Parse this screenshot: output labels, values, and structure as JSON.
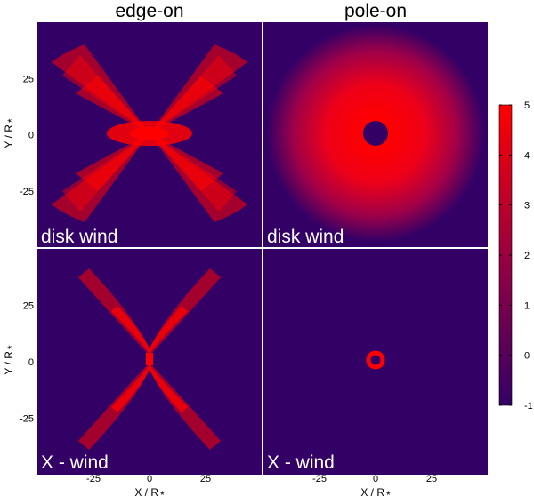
{
  "chart_data": {
    "type": "heatmap",
    "column_titles": [
      "edge-on",
      "pole-on"
    ],
    "panels": [
      {
        "row": 0,
        "col": 0,
        "view": "edge-on",
        "label": "disk wind"
      },
      {
        "row": 0,
        "col": 1,
        "view": "pole-on",
        "label": "disk wind"
      },
      {
        "row": 1,
        "col": 0,
        "view": "edge-on",
        "label": "X - wind"
      },
      {
        "row": 1,
        "col": 1,
        "view": "pole-on",
        "label": "X - wind"
      }
    ],
    "xlabel": "X / R",
    "ylabel": "Y / R",
    "axis_subscript": "*",
    "xlim": [
      -50,
      50
    ],
    "ylim": [
      -50,
      50
    ],
    "x_ticks": [
      -25,
      0,
      25
    ],
    "y_ticks": [
      25,
      0,
      -25
    ],
    "colorbar": {
      "min": -1,
      "max": 5,
      "ticks": [
        5,
        4,
        3,
        2,
        1,
        0,
        -1
      ],
      "low_color": "#330066",
      "high_color": "#ff0000"
    },
    "colors": {
      "background": "#330066",
      "emission": "#ff0000",
      "separator": "#ffffff"
    }
  }
}
